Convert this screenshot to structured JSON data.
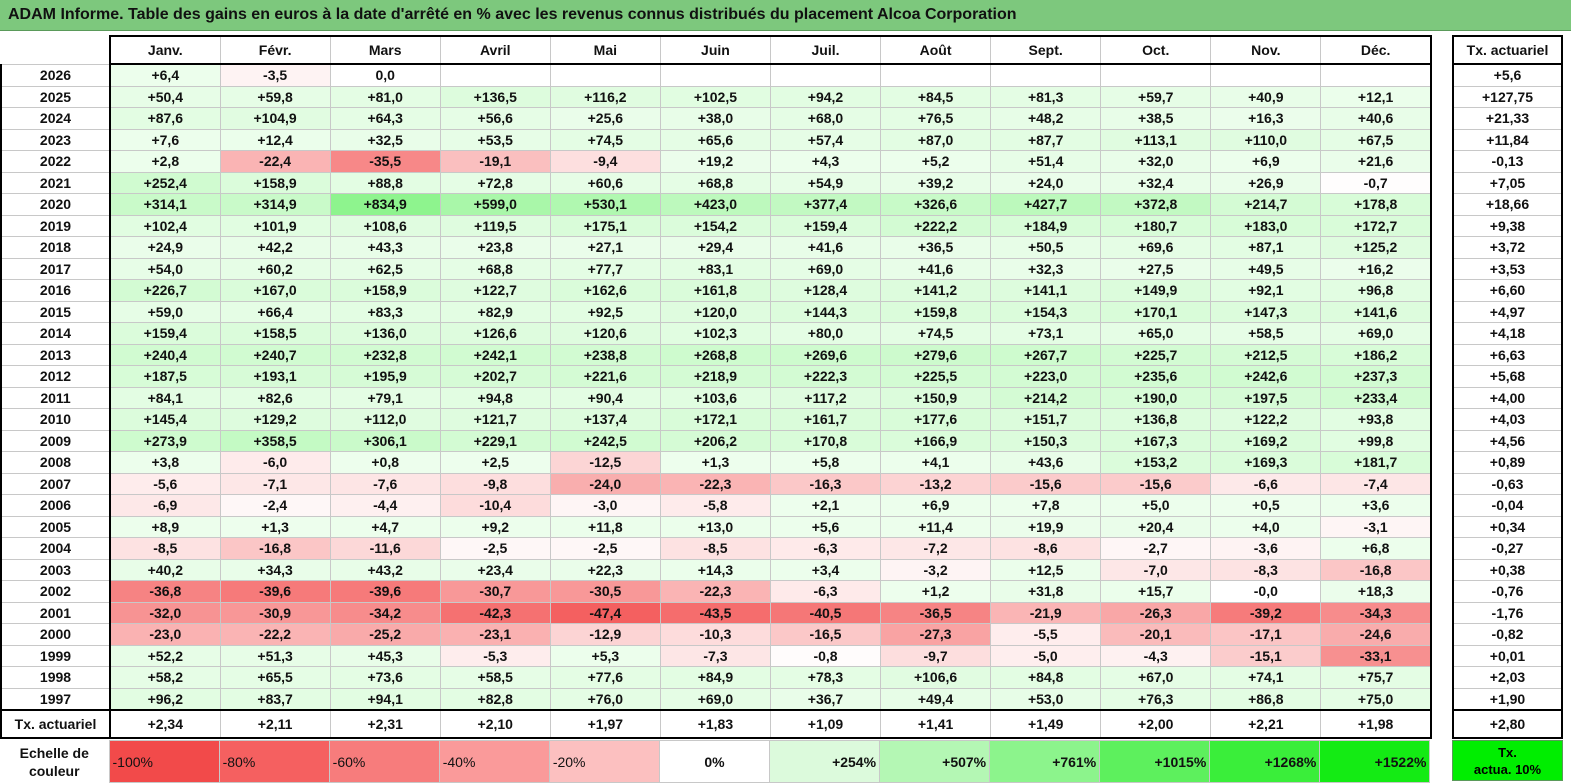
{
  "title": "ADAM Informe. Table des gains en euros à la date d'arrêté en % avec les revenus connus distribués du placement Alcoa Corporation",
  "months": [
    "Janv.",
    "Févr.",
    "Mars",
    "Avril",
    "Mai",
    "Juin",
    "Juil.",
    "Août",
    "Sept.",
    "Oct.",
    "Nov.",
    "Déc."
  ],
  "rate_header": "Tx. actuariel",
  "rows": [
    {
      "year": "2026",
      "values": [
        "+6,4",
        "-3,5",
        "0,0",
        "",
        "",
        "",
        "",
        "",
        "",
        "",
        "",
        ""
      ],
      "rate": "+5,6"
    },
    {
      "year": "2025",
      "values": [
        "+50,4",
        "+59,8",
        "+81,0",
        "+136,5",
        "+116,2",
        "+102,5",
        "+94,2",
        "+84,5",
        "+81,3",
        "+59,7",
        "+40,9",
        "+12,1"
      ],
      "rate": "+127,75"
    },
    {
      "year": "2024",
      "values": [
        "+87,6",
        "+104,9",
        "+64,3",
        "+56,6",
        "+25,6",
        "+38,0",
        "+68,0",
        "+76,5",
        "+48,2",
        "+38,5",
        "+16,3",
        "+40,6"
      ],
      "rate": "+21,33"
    },
    {
      "year": "2023",
      "values": [
        "+7,6",
        "+12,4",
        "+32,5",
        "+53,5",
        "+74,5",
        "+65,6",
        "+57,4",
        "+87,0",
        "+87,7",
        "+113,1",
        "+110,0",
        "+67,5"
      ],
      "rate": "+11,84"
    },
    {
      "year": "2022",
      "values": [
        "+2,8",
        "-22,4",
        "-35,5",
        "-19,1",
        "-9,4",
        "+19,2",
        "+4,3",
        "+5,2",
        "+51,4",
        "+32,0",
        "+6,9",
        "+21,6"
      ],
      "rate": "-0,13"
    },
    {
      "year": "2021",
      "values": [
        "+252,4",
        "+158,9",
        "+88,8",
        "+72,8",
        "+60,6",
        "+68,8",
        "+54,9",
        "+39,2",
        "+24,0",
        "+32,4",
        "+26,9",
        "-0,7"
      ],
      "rate": "+7,05"
    },
    {
      "year": "2020",
      "values": [
        "+314,1",
        "+314,9",
        "+834,9",
        "+599,0",
        "+530,1",
        "+423,0",
        "+377,4",
        "+326,6",
        "+427,7",
        "+372,8",
        "+214,7",
        "+178,8"
      ],
      "rate": "+18,66"
    },
    {
      "year": "2019",
      "values": [
        "+102,4",
        "+101,9",
        "+108,6",
        "+119,5",
        "+175,1",
        "+154,2",
        "+159,4",
        "+222,2",
        "+184,9",
        "+180,7",
        "+183,0",
        "+172,7"
      ],
      "rate": "+9,38"
    },
    {
      "year": "2018",
      "values": [
        "+24,9",
        "+42,2",
        "+43,3",
        "+23,8",
        "+27,1",
        "+29,4",
        "+41,6",
        "+36,5",
        "+50,5",
        "+69,6",
        "+87,1",
        "+125,2"
      ],
      "rate": "+3,72"
    },
    {
      "year": "2017",
      "values": [
        "+54,0",
        "+60,2",
        "+62,5",
        "+68,8",
        "+77,7",
        "+83,1",
        "+69,0",
        "+41,6",
        "+32,3",
        "+27,5",
        "+49,5",
        "+16,2"
      ],
      "rate": "+3,53"
    },
    {
      "year": "2016",
      "values": [
        "+226,7",
        "+167,0",
        "+158,9",
        "+122,7",
        "+162,6",
        "+161,8",
        "+128,4",
        "+141,2",
        "+141,1",
        "+149,9",
        "+92,1",
        "+96,8"
      ],
      "rate": "+6,60"
    },
    {
      "year": "2015",
      "values": [
        "+59,0",
        "+66,4",
        "+83,3",
        "+82,9",
        "+92,5",
        "+120,0",
        "+144,3",
        "+159,8",
        "+154,3",
        "+170,1",
        "+147,3",
        "+141,6"
      ],
      "rate": "+4,97"
    },
    {
      "year": "2014",
      "values": [
        "+159,4",
        "+158,5",
        "+136,0",
        "+126,6",
        "+120,6",
        "+102,3",
        "+80,0",
        "+74,5",
        "+73,1",
        "+65,0",
        "+58,5",
        "+69,0"
      ],
      "rate": "+4,18"
    },
    {
      "year": "2013",
      "values": [
        "+240,4",
        "+240,7",
        "+232,8",
        "+242,1",
        "+238,8",
        "+268,8",
        "+269,6",
        "+279,6",
        "+267,7",
        "+225,7",
        "+212,5",
        "+186,2"
      ],
      "rate": "+6,63"
    },
    {
      "year": "2012",
      "values": [
        "+187,5",
        "+193,1",
        "+195,9",
        "+202,7",
        "+221,6",
        "+218,9",
        "+222,3",
        "+225,5",
        "+223,0",
        "+235,6",
        "+242,6",
        "+237,3"
      ],
      "rate": "+5,68"
    },
    {
      "year": "2011",
      "values": [
        "+84,1",
        "+82,6",
        "+79,1",
        "+94,8",
        "+90,4",
        "+103,6",
        "+117,2",
        "+150,9",
        "+214,2",
        "+190,0",
        "+197,5",
        "+233,4"
      ],
      "rate": "+4,00"
    },
    {
      "year": "2010",
      "values": [
        "+145,4",
        "+129,2",
        "+112,0",
        "+121,7",
        "+137,4",
        "+172,1",
        "+161,7",
        "+177,6",
        "+151,7",
        "+136,8",
        "+122,2",
        "+93,8"
      ],
      "rate": "+4,03"
    },
    {
      "year": "2009",
      "values": [
        "+273,9",
        "+358,5",
        "+306,1",
        "+229,1",
        "+242,5",
        "+206,2",
        "+170,8",
        "+166,9",
        "+150,3",
        "+167,3",
        "+169,2",
        "+99,8"
      ],
      "rate": "+4,56"
    },
    {
      "year": "2008",
      "values": [
        "+3,8",
        "-6,0",
        "+0,8",
        "+2,5",
        "-12,5",
        "+1,3",
        "+5,8",
        "+4,1",
        "+43,6",
        "+153,2",
        "+169,3",
        "+181,7"
      ],
      "rate": "+0,89"
    },
    {
      "year": "2007",
      "values": [
        "-5,6",
        "-7,1",
        "-7,6",
        "-9,8",
        "-24,0",
        "-22,3",
        "-16,3",
        "-13,2",
        "-15,6",
        "-15,6",
        "-6,6",
        "-7,4"
      ],
      "rate": "-0,63"
    },
    {
      "year": "2006",
      "values": [
        "-6,9",
        "-2,4",
        "-4,4",
        "-10,4",
        "-3,0",
        "-5,8",
        "+2,1",
        "+6,9",
        "+7,8",
        "+5,0",
        "+0,5",
        "+3,6"
      ],
      "rate": "-0,04"
    },
    {
      "year": "2005",
      "values": [
        "+8,9",
        "+1,3",
        "+4,7",
        "+9,2",
        "+11,8",
        "+13,0",
        "+5,6",
        "+11,4",
        "+19,9",
        "+20,4",
        "+4,0",
        "-3,1"
      ],
      "rate": "+0,34"
    },
    {
      "year": "2004",
      "values": [
        "-8,5",
        "-16,8",
        "-11,6",
        "-2,5",
        "-2,5",
        "-8,5",
        "-6,3",
        "-7,2",
        "-8,6",
        "-2,7",
        "-3,6",
        "+6,8"
      ],
      "rate": "-0,27"
    },
    {
      "year": "2003",
      "values": [
        "+40,2",
        "+34,3",
        "+43,2",
        "+23,4",
        "+22,3",
        "+14,3",
        "+3,4",
        "-3,2",
        "+12,5",
        "-7,0",
        "-8,3",
        "-16,8"
      ],
      "rate": "+0,38"
    },
    {
      "year": "2002",
      "values": [
        "-36,8",
        "-39,6",
        "-39,6",
        "-30,7",
        "-30,5",
        "-22,3",
        "-6,3",
        "+1,2",
        "+31,8",
        "+15,7",
        "-0,0",
        "+18,3"
      ],
      "rate": "-0,76"
    },
    {
      "year": "2001",
      "values": [
        "-32,0",
        "-30,9",
        "-34,2",
        "-42,3",
        "-47,4",
        "-43,5",
        "-40,5",
        "-36,5",
        "-21,9",
        "-26,3",
        "-39,2",
        "-34,3"
      ],
      "rate": "-1,76"
    },
    {
      "year": "2000",
      "values": [
        "-23,0",
        "-22,2",
        "-25,2",
        "-23,1",
        "-12,9",
        "-10,3",
        "-16,5",
        "-27,3",
        "-5,5",
        "-20,1",
        "-17,1",
        "-24,6"
      ],
      "rate": "-0,82"
    },
    {
      "year": "1999",
      "values": [
        "+52,2",
        "+51,3",
        "+45,3",
        "-5,3",
        "+5,3",
        "-7,3",
        "-0,8",
        "-9,7",
        "-5,0",
        "-4,3",
        "-15,1",
        "-33,1"
      ],
      "rate": "+0,01"
    },
    {
      "year": "1998",
      "values": [
        "+58,2",
        "+65,5",
        "+73,6",
        "+58,5",
        "+77,6",
        "+84,9",
        "+78,3",
        "+106,6",
        "+84,8",
        "+67,0",
        "+74,1",
        "+75,7"
      ],
      "rate": "+2,03"
    },
    {
      "year": "1997",
      "values": [
        "+96,2",
        "+83,7",
        "+94,1",
        "+82,8",
        "+76,0",
        "+69,0",
        "+36,7",
        "+49,4",
        "+53,0",
        "+76,3",
        "+86,8",
        "+75,0"
      ],
      "rate": "+1,90"
    }
  ],
  "footer": {
    "label": "Tx. actuariel",
    "values": [
      "+2,34",
      "+2,11",
      "+2,31",
      "+2,10",
      "+1,97",
      "+1,83",
      "+1,09",
      "+1,41",
      "+1,49",
      "+2,00",
      "+2,21",
      "+1,98"
    ],
    "rate": "+2,80"
  },
  "scale": {
    "label_line1": "Echelle de",
    "label_line2": "couleur",
    "items": [
      {
        "label": "-100%",
        "color": "#f24a4a",
        "kind": "neg"
      },
      {
        "label": "-80%",
        "color": "#f56060",
        "kind": "neg"
      },
      {
        "label": "-60%",
        "color": "#f77c7c",
        "kind": "neg"
      },
      {
        "label": "-40%",
        "color": "#fa9a9a",
        "kind": "neg"
      },
      {
        "label": "-20%",
        "color": "#fcc0c0",
        "kind": "neg"
      },
      {
        "label": "0%",
        "color": "#ffffff",
        "kind": "zero"
      },
      {
        "label": "+254%",
        "color": "#dcfadc",
        "kind": "pos"
      },
      {
        "label": "+507%",
        "color": "#b4f7b4",
        "kind": "pos"
      },
      {
        "label": "+761%",
        "color": "#8cf48c",
        "kind": "pos"
      },
      {
        "label": "+1015%",
        "color": "#5df05d",
        "kind": "pos"
      },
      {
        "label": "+1268%",
        "color": "#3aee3a",
        "kind": "pos"
      },
      {
        "label": "+1522%",
        "color": "#14eb14",
        "kind": "pos"
      }
    ],
    "rate_legend_line1": "Tx.",
    "rate_legend_line2": "actua. 10%"
  }
}
